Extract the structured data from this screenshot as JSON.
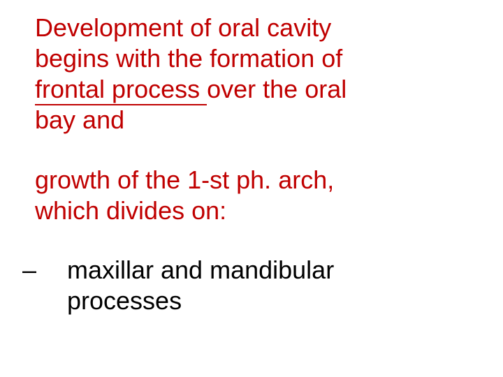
{
  "slide": {
    "text_color_emphasis": "#c00000",
    "text_color_body": "#000000",
    "background_color": "#ffffff",
    "font_family": "Verdana",
    "font_size_pt": 27,
    "line1_a": "Development of oral cavity",
    "line1_b": "begins with the formation of",
    "line1_c_underlined": "frontal process ",
    "line1_c_rest": "over the oral",
    "line1_d": "bay and",
    "line2_a": "growth of the 1-st ph. arch,",
    "line2_b": "which divides on:",
    "bullet_dash": "–",
    "line3_a": "maxillar and mandibular",
    "line3_b": "processes"
  }
}
